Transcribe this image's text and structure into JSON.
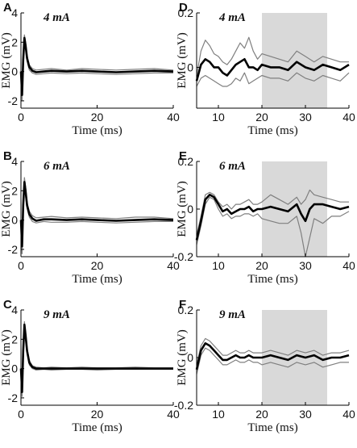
{
  "chart_data": [
    {
      "type": "line",
      "panel": "A",
      "annotation": "4 mA",
      "xlabel": "Time (ms)",
      "ylabel": "EMG (mV)",
      "xlim": [
        0,
        40
      ],
      "ylim": [
        -2.5,
        4
      ],
      "xticks": [
        0,
        20,
        40
      ],
      "yticks": [
        -2,
        0,
        2,
        4
      ],
      "series": [
        {
          "role": "mean",
          "x": [
            0,
            0.3,
            0.6,
            0.9,
            1.2,
            1.6,
            2.2,
            3,
            4,
            6,
            8,
            12,
            16,
            20,
            25,
            30,
            35,
            40
          ],
          "y": [
            0,
            -1.6,
            0.8,
            2.3,
            1.8,
            0.9,
            0.3,
            0.05,
            -0.05,
            0,
            0.05,
            0,
            0.05,
            0,
            -0.05,
            0,
            0.05,
            0
          ]
        },
        {
          "role": "upper",
          "x": [
            0,
            0.3,
            0.6,
            0.9,
            1.2,
            1.6,
            2.2,
            3,
            4,
            6,
            8,
            12,
            16,
            20,
            25,
            30,
            35,
            40
          ],
          "y": [
            0,
            -1.2,
            1.1,
            2.5,
            2.0,
            1.1,
            0.45,
            0.2,
            0.1,
            0.15,
            0.2,
            0.1,
            0.2,
            0.15,
            0.1,
            0.15,
            0.2,
            0.1
          ]
        },
        {
          "role": "lower",
          "x": [
            0,
            0.3,
            0.6,
            0.9,
            1.2,
            1.6,
            2.2,
            3,
            4,
            6,
            8,
            12,
            16,
            20,
            25,
            30,
            35,
            40
          ],
          "y": [
            0,
            -2.0,
            0.5,
            2.0,
            1.6,
            0.7,
            0.1,
            -0.1,
            -0.2,
            -0.15,
            -0.1,
            -0.15,
            -0.1,
            -0.15,
            -0.2,
            -0.15,
            -0.1,
            -0.1
          ]
        }
      ]
    },
    {
      "type": "line",
      "panel": "B",
      "annotation": "6 mA",
      "xlabel": "Time (ms)",
      "ylabel": "EMG (mV)",
      "xlim": [
        0,
        40
      ],
      "ylim": [
        -2.5,
        4
      ],
      "xticks": [
        0,
        20,
        40
      ],
      "yticks": [
        -2,
        0,
        2,
        4
      ],
      "series": [
        {
          "role": "mean",
          "x": [
            0,
            0.3,
            0.6,
            0.9,
            1.2,
            1.6,
            2.2,
            3,
            4,
            6,
            8,
            12,
            16,
            20,
            25,
            30,
            35,
            40
          ],
          "y": [
            0,
            -1.8,
            1.0,
            2.6,
            2.0,
            1.0,
            0.4,
            0.1,
            -0.05,
            0.05,
            0.05,
            0,
            0.05,
            0,
            -0.05,
            0,
            0.05,
            0
          ]
        },
        {
          "role": "upper",
          "x": [
            0,
            0.3,
            0.6,
            0.9,
            1.2,
            1.6,
            2.2,
            3,
            4,
            6,
            8,
            12,
            16,
            20,
            25,
            30,
            35,
            40
          ],
          "y": [
            0,
            -1.4,
            1.3,
            2.9,
            2.3,
            1.2,
            0.6,
            0.3,
            0.15,
            0.2,
            0.25,
            0.15,
            0.2,
            0.15,
            0.1,
            0.2,
            0.2,
            0.1
          ]
        },
        {
          "role": "lower",
          "x": [
            0,
            0.3,
            0.6,
            0.9,
            1.2,
            1.6,
            2.2,
            3,
            4,
            6,
            8,
            12,
            16,
            20,
            25,
            30,
            35,
            40
          ],
          "y": [
            0,
            -2.3,
            0.7,
            2.2,
            1.7,
            0.8,
            0.2,
            -0.1,
            -0.2,
            -0.1,
            -0.15,
            -0.15,
            -0.1,
            -0.15,
            -0.2,
            -0.15,
            -0.1,
            -0.1
          ]
        }
      ]
    },
    {
      "type": "line",
      "panel": "C",
      "annotation": "9 mA",
      "xlabel": "Time (ms)",
      "ylabel": "EMG (mV)",
      "xlim": [
        0,
        40
      ],
      "ylim": [
        -2.5,
        4
      ],
      "xticks": [
        0,
        20,
        40
      ],
      "yticks": [
        -2,
        0,
        2,
        4
      ],
      "series": [
        {
          "role": "mean",
          "x": [
            0,
            0.3,
            0.6,
            0.9,
            1.2,
            1.6,
            2.2,
            3,
            4,
            6,
            8,
            12,
            16,
            20,
            25,
            30,
            35,
            40
          ],
          "y": [
            0,
            -1.6,
            1.2,
            3.0,
            2.3,
            1.2,
            0.4,
            0.1,
            0,
            0,
            0,
            0,
            0,
            0,
            0,
            0,
            0,
            0
          ]
        },
        {
          "role": "upper",
          "x": [
            0,
            0.3,
            0.6,
            0.9,
            1.2,
            1.6,
            2.2,
            3,
            4,
            6,
            8,
            12,
            16,
            20,
            25,
            30,
            35,
            40
          ],
          "y": [
            0,
            -1.3,
            1.5,
            3.2,
            2.5,
            1.4,
            0.55,
            0.2,
            0.1,
            0.05,
            0.1,
            0.05,
            0.1,
            0.05,
            0.05,
            0.1,
            0.05,
            0.05
          ]
        },
        {
          "role": "lower",
          "x": [
            0,
            0.3,
            0.6,
            0.9,
            1.2,
            1.6,
            2.2,
            3,
            4,
            6,
            8,
            12,
            16,
            20,
            25,
            30,
            35,
            40
          ],
          "y": [
            0,
            -1.9,
            0.9,
            2.7,
            2.1,
            1.0,
            0.25,
            0,
            -0.1,
            -0.05,
            -0.1,
            -0.05,
            -0.05,
            -0.1,
            -0.05,
            -0.05,
            -0.05,
            -0.05
          ]
        }
      ]
    },
    {
      "type": "line",
      "panel": "D",
      "annotation": "4 mA",
      "xlabel": "Time (ms)",
      "ylabel": "EMG (mV)",
      "xlim": [
        5,
        40
      ],
      "ylim": [
        -0.15,
        0.2
      ],
      "xticks": [
        10,
        20,
        30,
        40
      ],
      "yticks": [
        -0.2,
        0,
        0.2
      ],
      "shaded_region": [
        20,
        35
      ],
      "series": [
        {
          "role": "mean",
          "x": [
            5,
            6,
            7,
            8,
            9,
            10,
            11,
            12,
            13,
            14,
            15,
            16,
            17,
            18,
            19,
            20,
            22,
            24,
            26,
            28,
            30,
            32,
            34,
            36,
            38,
            40
          ],
          "y": [
            -0.05,
            0.01,
            0.03,
            0.02,
            0.0,
            0.0,
            -0.02,
            -0.03,
            -0.01,
            0.01,
            0.02,
            0.03,
            0.0,
            0.0,
            -0.01,
            0.01,
            0.0,
            0.0,
            -0.01,
            0.02,
            0.0,
            -0.01,
            0.01,
            0.0,
            -0.01,
            0.01
          ]
        },
        {
          "role": "upper",
          "x": [
            5,
            6,
            7,
            8,
            9,
            10,
            11,
            12,
            13,
            14,
            15,
            16,
            17,
            18,
            19,
            20,
            22,
            24,
            26,
            28,
            30,
            32,
            34,
            36,
            38,
            40
          ],
          "y": [
            -0.03,
            0.06,
            0.1,
            0.08,
            0.05,
            0.04,
            0.02,
            0.01,
            0.03,
            0.06,
            0.09,
            0.07,
            0.11,
            0.06,
            0.03,
            0.05,
            0.04,
            0.03,
            0.02,
            0.06,
            0.04,
            0.02,
            0.04,
            0.03,
            0.02,
            0.02
          ]
        },
        {
          "role": "lower",
          "x": [
            5,
            6,
            7,
            8,
            9,
            10,
            11,
            12,
            13,
            14,
            15,
            16,
            17,
            18,
            19,
            20,
            22,
            24,
            26,
            28,
            30,
            32,
            34,
            36,
            38,
            40
          ],
          "y": [
            -0.07,
            -0.04,
            -0.03,
            -0.04,
            -0.05,
            -0.06,
            -0.07,
            -0.07,
            -0.06,
            -0.04,
            -0.05,
            -0.02,
            -0.06,
            -0.05,
            -0.04,
            -0.03,
            -0.04,
            -0.04,
            -0.05,
            -0.02,
            -0.04,
            -0.05,
            -0.03,
            -0.04,
            -0.05,
            -0.02
          ]
        }
      ]
    },
    {
      "type": "line",
      "panel": "E",
      "annotation": "6 mA",
      "xlabel": "Time (ms)",
      "ylabel": "EMG (mV)",
      "xlim": [
        5,
        40
      ],
      "ylim": [
        -0.2,
        0.2
      ],
      "xticks": [
        10,
        20,
        30,
        40
      ],
      "yticks": [
        -0.2,
        0,
        0.2
      ],
      "shaded_region": [
        20,
        35
      ],
      "series": [
        {
          "role": "mean",
          "x": [
            5,
            6,
            7,
            8,
            9,
            10,
            11,
            12,
            13,
            14,
            15,
            16,
            17,
            18,
            19,
            20,
            22,
            24,
            26,
            28,
            29,
            30,
            31,
            32,
            34,
            36,
            38,
            40
          ],
          "y": [
            -0.13,
            -0.05,
            0.04,
            0.06,
            0.05,
            0.02,
            -0.01,
            0.0,
            -0.02,
            -0.01,
            0.0,
            0.0,
            0.01,
            -0.01,
            0.0,
            0.0,
            0.01,
            0.0,
            -0.01,
            0.02,
            -0.02,
            -0.05,
            0.0,
            0.02,
            0.02,
            0.01,
            0.0,
            0.01
          ]
        },
        {
          "role": "upper",
          "x": [
            5,
            6,
            7,
            8,
            9,
            10,
            11,
            12,
            13,
            14,
            15,
            16,
            17,
            18,
            19,
            20,
            22,
            24,
            26,
            28,
            29,
            30,
            31,
            32,
            34,
            36,
            38,
            40
          ],
          "y": [
            -0.11,
            -0.03,
            0.06,
            0.07,
            0.06,
            0.03,
            0.01,
            0.02,
            0.0,
            0.02,
            0.02,
            0.03,
            0.04,
            0.02,
            0.02,
            0.03,
            0.06,
            0.04,
            0.02,
            0.05,
            0.02,
            0.04,
            0.08,
            0.06,
            0.05,
            0.04,
            0.03,
            0.03
          ]
        },
        {
          "role": "lower",
          "x": [
            5,
            6,
            7,
            8,
            9,
            10,
            11,
            12,
            13,
            14,
            15,
            16,
            17,
            18,
            19,
            20,
            22,
            24,
            26,
            28,
            29,
            30,
            31,
            32,
            34,
            36,
            38,
            40
          ],
          "y": [
            -0.15,
            -0.07,
            0.02,
            0.05,
            0.04,
            0.0,
            -0.03,
            -0.02,
            -0.04,
            -0.03,
            -0.03,
            -0.02,
            -0.02,
            -0.03,
            -0.02,
            -0.04,
            -0.05,
            -0.06,
            -0.06,
            -0.03,
            -0.1,
            -0.2,
            -0.12,
            -0.04,
            -0.06,
            -0.03,
            -0.03,
            -0.01
          ]
        }
      ]
    },
    {
      "type": "line",
      "panel": "F",
      "annotation": "9 mA",
      "xlabel": "Time (ms)",
      "ylabel": "EMG (mV)",
      "xlim": [
        5,
        40
      ],
      "ylim": [
        -0.2,
        0.2
      ],
      "xticks": [
        10,
        20,
        30,
        40
      ],
      "yticks": [
        -0.2,
        0,
        0.2
      ],
      "shaded_region": [
        20,
        35
      ],
      "series": [
        {
          "role": "mean",
          "x": [
            5,
            6,
            7,
            8,
            9,
            10,
            11,
            12,
            13,
            14,
            15,
            16,
            17,
            18,
            19,
            20,
            22,
            24,
            26,
            28,
            30,
            32,
            34,
            36,
            38,
            40
          ],
          "y": [
            -0.05,
            0.03,
            0.06,
            0.05,
            0.03,
            0.01,
            -0.01,
            -0.01,
            0.0,
            0.01,
            0.0,
            0.0,
            0.01,
            0.0,
            0.0,
            0.0,
            0.01,
            0.0,
            -0.01,
            0.01,
            0.0,
            0.01,
            -0.01,
            0.0,
            0.0,
            0.01
          ]
        },
        {
          "role": "upper",
          "x": [
            5,
            6,
            7,
            8,
            9,
            10,
            11,
            12,
            13,
            14,
            15,
            16,
            17,
            18,
            19,
            20,
            22,
            24,
            26,
            28,
            30,
            32,
            34,
            36,
            38,
            40
          ],
          "y": [
            -0.03,
            0.05,
            0.08,
            0.07,
            0.05,
            0.03,
            0.01,
            0.01,
            0.02,
            0.03,
            0.02,
            0.02,
            0.03,
            0.02,
            0.02,
            0.02,
            0.03,
            0.02,
            0.01,
            0.03,
            0.02,
            0.03,
            0.01,
            0.02,
            0.02,
            0.03
          ]
        },
        {
          "role": "lower",
          "x": [
            5,
            6,
            7,
            8,
            9,
            10,
            11,
            12,
            13,
            14,
            15,
            16,
            17,
            18,
            19,
            20,
            22,
            24,
            26,
            28,
            30,
            32,
            34,
            36,
            38,
            40
          ],
          "y": [
            -0.07,
            0.01,
            0.04,
            0.03,
            0.01,
            -0.01,
            -0.03,
            -0.03,
            -0.02,
            -0.01,
            -0.02,
            -0.02,
            -0.01,
            -0.02,
            -0.02,
            -0.03,
            -0.02,
            -0.03,
            -0.04,
            -0.02,
            -0.03,
            -0.02,
            -0.04,
            -0.03,
            -0.02,
            -0.02
          ]
        }
      ]
    }
  ],
  "colors": {
    "mean": "#000000",
    "band": "#7f7f7f",
    "shade": "#d9d9d9",
    "axis": "#000000"
  }
}
